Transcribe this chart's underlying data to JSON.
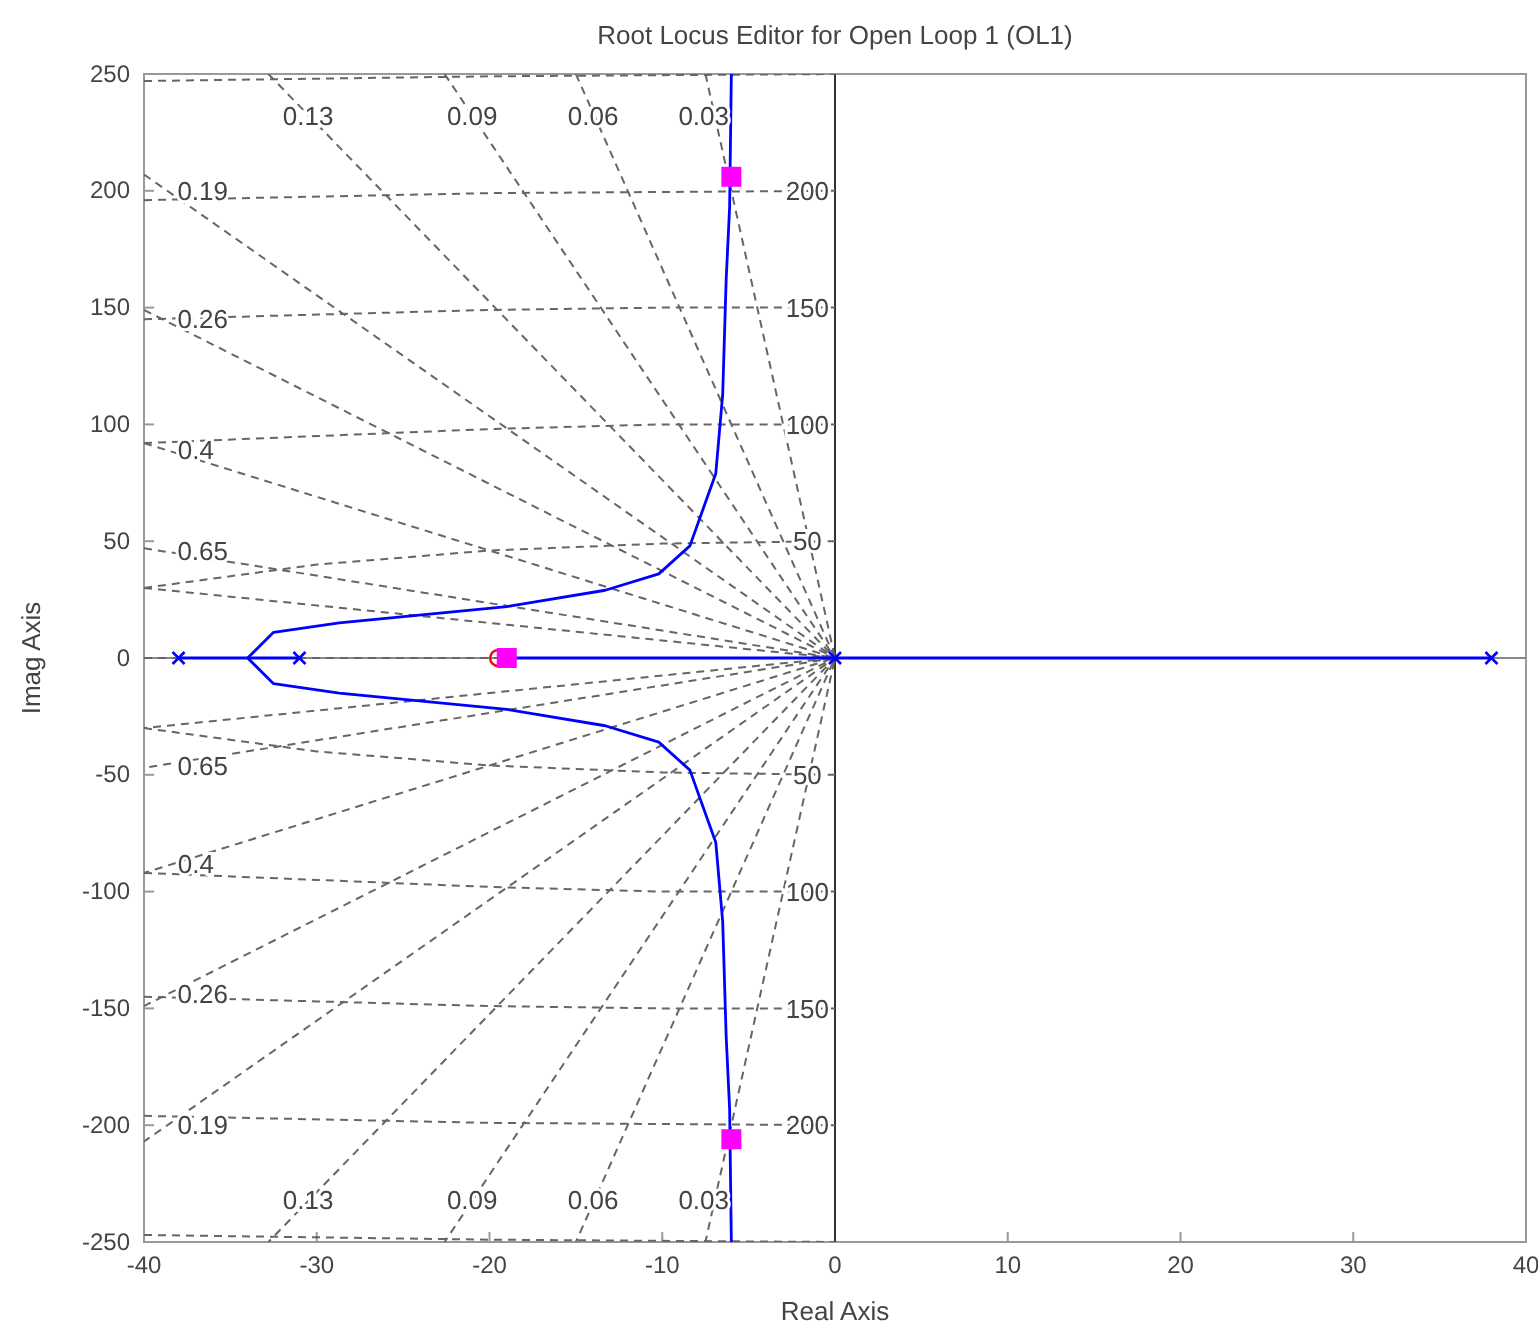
{
  "chart_data": {
    "type": "line",
    "title": "Root Locus Editor for Open Loop 1 (OL1)",
    "xlabel": "Real Axis",
    "ylabel": "Imag Axis",
    "xlim": [
      -40,
      40
    ],
    "ylim": [
      -250,
      250
    ],
    "xticks": [
      -40,
      -30,
      -20,
      -10,
      0,
      10,
      20,
      30,
      40
    ],
    "yticks": [
      -250,
      -200,
      -150,
      -100,
      -50,
      0,
      50,
      100,
      150,
      200,
      250
    ],
    "grid": false,
    "ref_lines": [
      {
        "axis": "x",
        "value": 0,
        "color": "#333333",
        "line_style": "solid"
      },
      {
        "axis": "y",
        "value": 0,
        "color": "#888888",
        "line_style": "solid"
      }
    ],
    "series": [
      {
        "color": "#666666",
        "line_style": "dashed",
        "marker": "none",
        "x": [
          -40,
          0,
          -40
        ],
        "values": [
          47,
          0,
          -47
        ]
      },
      {
        "type": "line",
        "color": "#666666",
        "line_style": "dashed",
        "marker": "none",
        "x": [
          -40,
          0,
          -40
        ],
        "values": [
          92,
          0,
          -92
        ]
      },
      {
        "type": "line",
        "color": "#666666",
        "line_style": "dashed",
        "marker": "none",
        "x": [
          -40,
          0,
          -40
        ],
        "values": [
          149,
          0,
          -149
        ]
      },
      {
        "type": "line",
        "color": "#666666",
        "line_style": "dashed",
        "marker": "none",
        "x": [
          -40,
          0,
          -40
        ],
        "values": [
          207,
          0,
          -207
        ]
      },
      {
        "type": "line",
        "color": "#666666",
        "line_style": "dashed",
        "marker": "none",
        "x": [
          -32.8,
          0,
          -32.8
        ],
        "values": [
          250,
          0,
          -250
        ]
      },
      {
        "type": "line",
        "color": "#666666",
        "line_style": "dashed",
        "marker": "none",
        "x": [
          -22.6,
          0,
          -22.6
        ],
        "values": [
          250,
          0,
          -250
        ]
      },
      {
        "type": "line",
        "color": "#666666",
        "line_style": "dashed",
        "marker": "none",
        "x": [
          -15,
          0,
          -15
        ],
        "values": [
          250,
          0,
          -250
        ]
      },
      {
        "type": "line",
        "color": "#666666",
        "line_style": "dashed",
        "marker": "none",
        "x": [
          -7.5,
          0,
          -7.5
        ],
        "values": [
          250,
          0,
          -250
        ]
      },
      {
        "type": "line",
        "color": "#666666",
        "line_style": "dashed",
        "marker": "none",
        "x": [
          -40,
          0,
          -40
        ],
        "values": [
          30,
          0,
          -30
        ]
      },
      {
        "type": "line",
        "color": "#666666",
        "line_style": "dashed",
        "marker": "none",
        "x": [
          -40,
          0
        ],
        "values": [
          0,
          0
        ]
      },
      {
        "type": "line",
        "color": "#666666",
        "line_style": "dashed",
        "marker": "none",
        "x": [
          -40,
          -30,
          -20,
          -10,
          0
        ],
        "values": [
          30,
          40,
          46,
          49,
          50
        ]
      },
      {
        "type": "line",
        "color": "#666666",
        "line_style": "dashed",
        "marker": "none",
        "x": [
          -40,
          -30,
          -20,
          -10,
          0
        ],
        "values": [
          -30,
          -40,
          -46,
          -49,
          -50
        ]
      },
      {
        "type": "line",
        "color": "#666666",
        "line_style": "dashed",
        "marker": "none",
        "x": [
          -40,
          -30,
          -20,
          -10,
          0
        ],
        "values": [
          92,
          95,
          98,
          100,
          100
        ]
      },
      {
        "type": "line",
        "color": "#666666",
        "line_style": "dashed",
        "marker": "none",
        "x": [
          -40,
          -30,
          -20,
          -10,
          0
        ],
        "values": [
          -92,
          -95,
          -98,
          -100,
          -100
        ]
      },
      {
        "type": "line",
        "color": "#666666",
        "line_style": "dashed",
        "marker": "none",
        "x": [
          -40,
          -30,
          -20,
          -10,
          0
        ],
        "values": [
          145,
          147,
          149,
          150,
          150
        ]
      },
      {
        "type": "line",
        "color": "#666666",
        "line_style": "dashed",
        "marker": "none",
        "x": [
          -40,
          -30,
          -20,
          -10,
          0
        ],
        "values": [
          -145,
          -147,
          -149,
          -150,
          -150
        ]
      },
      {
        "type": "line",
        "color": "#666666",
        "line_style": "dashed",
        "marker": "none",
        "x": [
          -40,
          -20,
          0
        ],
        "values": [
          196,
          199,
          200
        ]
      },
      {
        "type": "line",
        "color": "#666666",
        "line_style": "dashed",
        "marker": "none",
        "x": [
          -40,
          -20,
          0
        ],
        "values": [
          -196,
          -199,
          -200
        ]
      },
      {
        "type": "line",
        "color": "#666666",
        "line_style": "dashed",
        "marker": "none",
        "x": [
          -40,
          -20,
          0
        ],
        "values": [
          247,
          249,
          250
        ]
      },
      {
        "type": "line",
        "color": "#666666",
        "line_style": "dashed",
        "marker": "none",
        "x": [
          -40,
          -20,
          0
        ],
        "values": [
          -247,
          -249,
          -250
        ]
      },
      {
        "type": "line",
        "color": "#0000ff",
        "line_style": "solid",
        "marker": "none",
        "x": [
          -34,
          -32.5,
          -28.7,
          -19,
          -13.3,
          -10.2,
          -8.4,
          -6.9,
          -6.5,
          -6.3,
          -6.1,
          -6
        ],
        "values": [
          0,
          11,
          15,
          22,
          29,
          36,
          48,
          79,
          113,
          162,
          193,
          250
        ]
      },
      {
        "type": "line",
        "color": "#0000ff",
        "line_style": "solid",
        "marker": "none",
        "x": [
          -34,
          -32.5,
          -28.7,
          -19,
          -13.3,
          -10.2,
          -8.4,
          -6.9,
          -6.5,
          -6.3,
          -6.1,
          -6
        ],
        "values": [
          0,
          -11,
          -15,
          -22,
          -29,
          -36,
          -48,
          -79,
          -113,
          -162,
          -193,
          -250
        ]
      },
      {
        "type": "line",
        "color": "#0000ff",
        "line_style": "solid",
        "marker": "none",
        "x": [
          -38,
          -31
        ],
        "values": [
          0,
          0
        ]
      },
      {
        "type": "line",
        "color": "#0000ff",
        "line_style": "solid",
        "marker": "none",
        "x": [
          -19.5,
          38
        ],
        "values": [
          0,
          0
        ]
      },
      {
        "type": "scatter",
        "color": "#0000ff",
        "marker": "cross",
        "x": [
          -38,
          -31,
          0,
          38
        ],
        "values": [
          0,
          0,
          0,
          0
        ]
      },
      {
        "type": "scatter",
        "color": "#ff0000",
        "marker": "circle",
        "x": [
          -19.5
        ],
        "values": [
          0
        ]
      },
      {
        "type": "scatter",
        "color": "#ff00ff",
        "marker": "square",
        "x": [
          -6,
          -6,
          -19
        ],
        "values": [
          206,
          -206,
          0
        ]
      }
    ],
    "annotations": [
      {
        "text": "0.13",
        "x": -30.5,
        "y": 232
      },
      {
        "text": "0.09",
        "x": -21,
        "y": 232
      },
      {
        "text": "0.06",
        "x": -14,
        "y": 232
      },
      {
        "text": "0.03",
        "x": -7.6,
        "y": 232
      },
      {
        "text": "0.13",
        "x": -30.5,
        "y": -232
      },
      {
        "text": "0.09",
        "x": -21,
        "y": -232
      },
      {
        "text": "0.06",
        "x": -14,
        "y": -232
      },
      {
        "text": "0.03",
        "x": -7.6,
        "y": -232
      },
      {
        "text": "0.19",
        "x": -36.6,
        "y": 200
      },
      {
        "text": "0.26",
        "x": -36.6,
        "y": 145
      },
      {
        "text": "0.4",
        "x": -37,
        "y": 89
      },
      {
        "text": "0.65",
        "x": -36.6,
        "y": 46
      },
      {
        "text": "0.19",
        "x": -36.6,
        "y": -200
      },
      {
        "text": "0.26",
        "x": -36.6,
        "y": -144
      },
      {
        "text": "0.4",
        "x": -37,
        "y": -88
      },
      {
        "text": "0.65",
        "x": -36.6,
        "y": -46
      },
      {
        "text": "200",
        "x": -1.6,
        "y": 200
      },
      {
        "text": "150",
        "x": -1.6,
        "y": 150
      },
      {
        "text": "100",
        "x": -1.6,
        "y": 100
      },
      {
        "text": "50",
        "x": -1.6,
        "y": 50
      },
      {
        "text": "50",
        "x": -1.6,
        "y": -50
      },
      {
        "text": "100",
        "x": -1.6,
        "y": -100
      },
      {
        "text": "150",
        "x": -1.6,
        "y": -150
      },
      {
        "text": "200",
        "x": -1.6,
        "y": -200
      }
    ]
  }
}
